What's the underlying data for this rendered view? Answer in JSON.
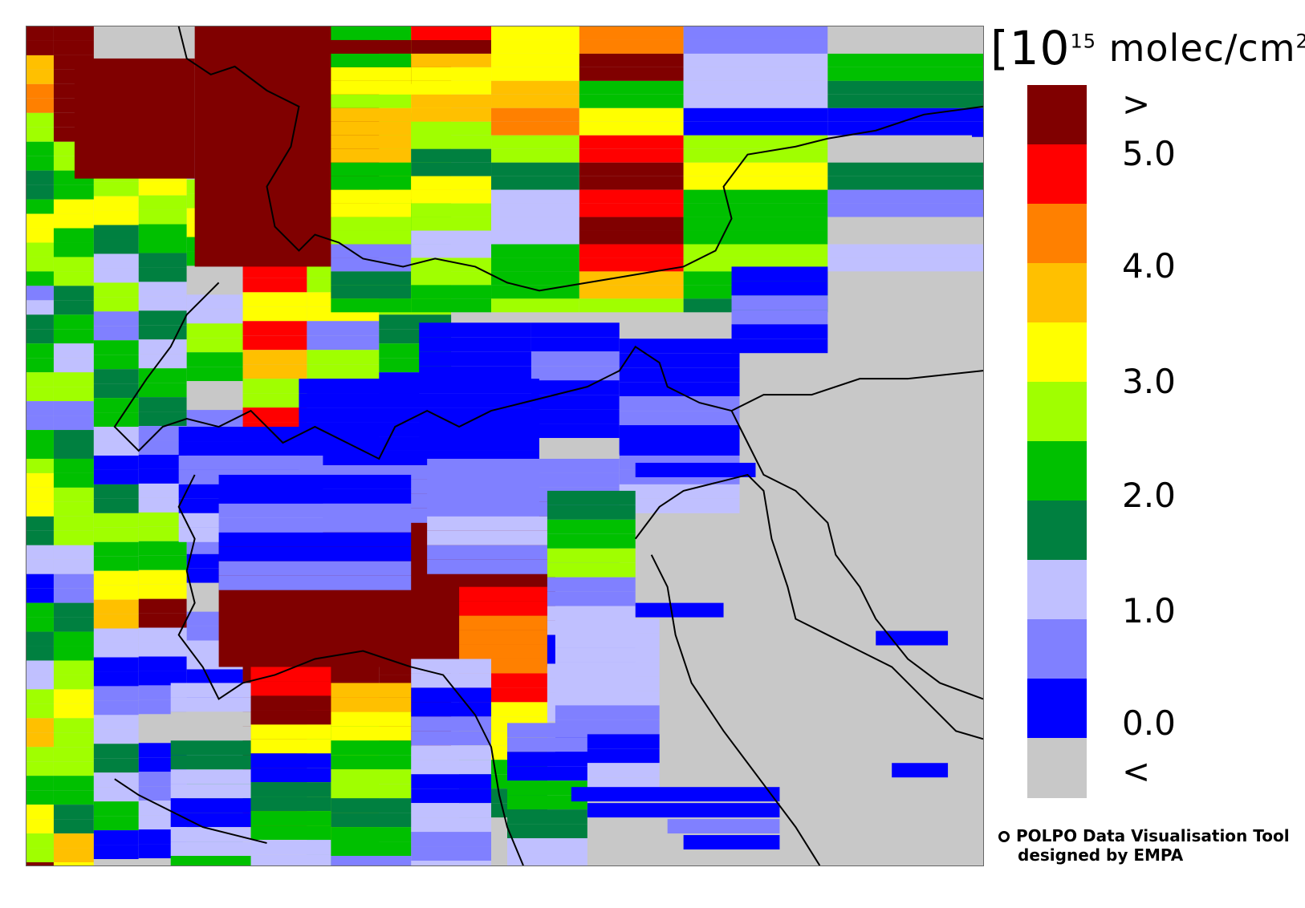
{
  "legend": {
    "unit_prefix": "[10",
    "unit_exp": "15",
    "unit_suffix": " molec/cm",
    "unit_sq": "2",
    "unit_close": "]",
    "labels": [
      ">",
      "5.0",
      "4.0",
      "3.0",
      "2.0",
      "1.0",
      "0.0",
      "<"
    ],
    "bins": [
      {
        "name": "above",
        "color": "#800000"
      },
      {
        "name": "4.5-5.0",
        "color": "#ff0000"
      },
      {
        "name": "4.0-4.5",
        "color": "#ff8000"
      },
      {
        "name": "3.5-4.0",
        "color": "#ffc000"
      },
      {
        "name": "3.0-3.5",
        "color": "#ffff00"
      },
      {
        "name": "2.5-3.0",
        "color": "#a0ff00"
      },
      {
        "name": "2.0-2.5",
        "color": "#00c000"
      },
      {
        "name": "1.5-2.0",
        "color": "#008040"
      },
      {
        "name": "1.0-1.5",
        "color": "#c0c0ff"
      },
      {
        "name": "0.5-1.0",
        "color": "#8080ff"
      },
      {
        "name": "0.0-0.5",
        "color": "#0000ff"
      },
      {
        "name": "below",
        "color": "#c8c8c8"
      }
    ]
  },
  "credit": {
    "line1": "POLPO Data Visualisation Tool",
    "line2": "designed by EMPA"
  }
}
